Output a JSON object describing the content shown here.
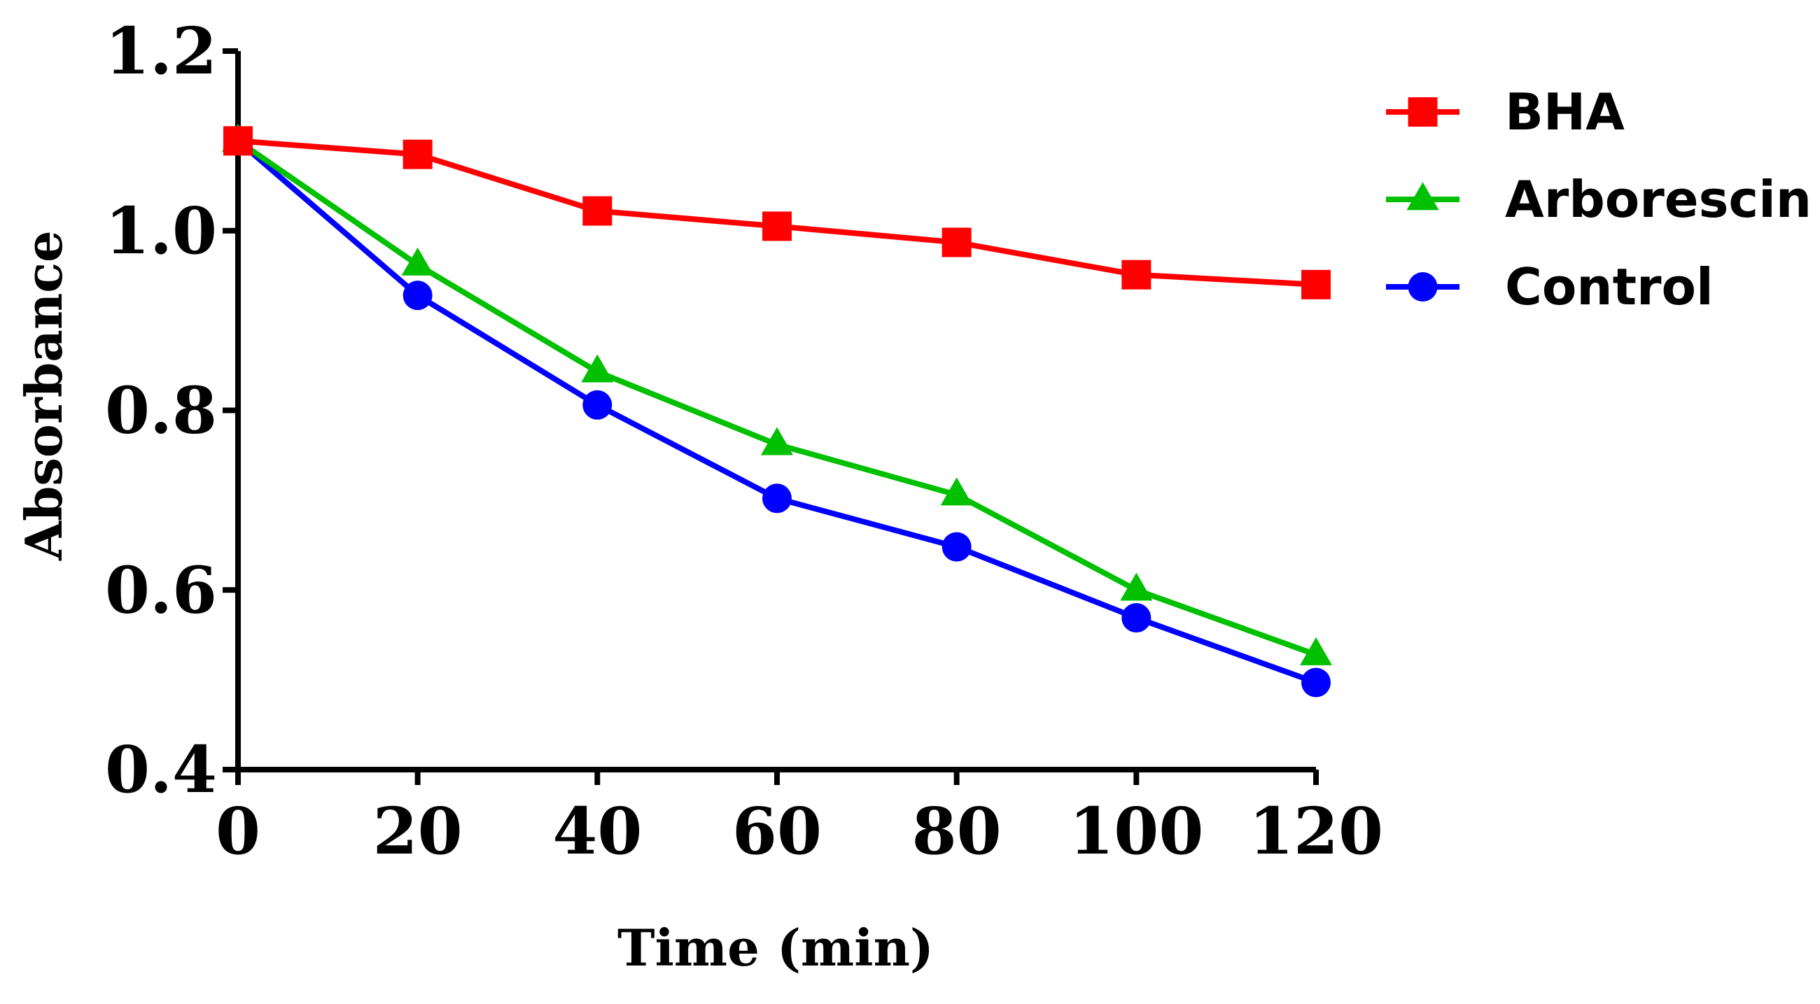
{
  "chart_data": {
    "type": "line",
    "title": "",
    "xlabel": "Time (min)",
    "ylabel": "Absorbance",
    "xlim": [
      0,
      120
    ],
    "ylim": [
      0.4,
      1.2
    ],
    "x": [
      0,
      20,
      40,
      60,
      80,
      100,
      120
    ],
    "xticks": [
      "0",
      "20",
      "40",
      "60",
      "80",
      "100",
      "120"
    ],
    "yticks": [
      "0.4",
      "0.6",
      "0.8",
      "1.0",
      "1.2"
    ],
    "yticks_values": [
      0.4,
      0.6,
      0.8,
      1.0,
      1.2
    ],
    "grid": false,
    "legend_position": "top-right",
    "series": [
      {
        "name": "BHA",
        "color": "#ff0000",
        "marker": "square",
        "values": [
          1.1,
          1.085,
          1.022,
          1.005,
          0.987,
          0.951,
          0.94
        ]
      },
      {
        "name": "Arborescin",
        "color": "#00c000",
        "marker": "triangle",
        "values": [
          1.1,
          0.962,
          0.843,
          0.762,
          0.706,
          0.6,
          0.528
        ]
      },
      {
        "name": "Control",
        "color": "#0000ff",
        "marker": "circle",
        "values": [
          1.1,
          0.928,
          0.806,
          0.702,
          0.648,
          0.569,
          0.497
        ]
      }
    ]
  }
}
